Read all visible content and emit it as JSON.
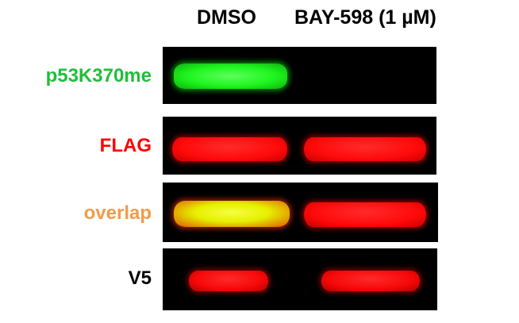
{
  "columns": [
    "DMSO",
    "BAY-598 (1 µM)"
  ],
  "rows": [
    {
      "label": "p53K370me",
      "label_color": "#1fbf3a",
      "band_type": "green",
      "lanes": [
        true,
        false
      ]
    },
    {
      "label": "FLAG",
      "label_color": "#ff0000",
      "band_type": "red",
      "lanes": [
        true,
        true
      ]
    },
    {
      "label": "overlap",
      "label_color": "#f29b4b",
      "band_type": "overlap",
      "lanes": [
        true,
        true
      ]
    },
    {
      "label": "V5",
      "label_color": "#000000",
      "band_type": "red-small",
      "lanes": [
        true,
        true
      ]
    }
  ],
  "colors": {
    "panel_background": "#000000",
    "green_band": "#22ff22",
    "red_band": "#ff1212",
    "yellow_band": "#eeff00"
  }
}
